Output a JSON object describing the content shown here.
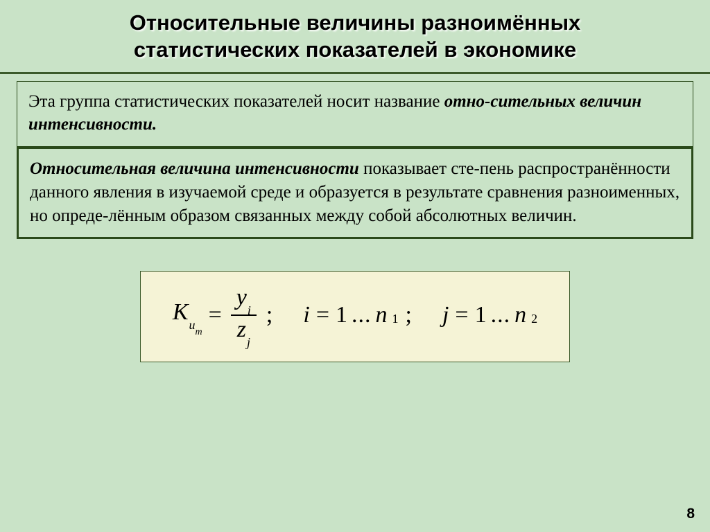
{
  "colors": {
    "slide_bg": "#c9e3c7",
    "formula_bg": "#f5f3d6",
    "border_dark": "#2a4a1a",
    "title_shadow": "#ffffff"
  },
  "title": {
    "line1": "Относительные величины разноимённых",
    "line2": "статистических показателей в экономике",
    "fontsize": 31
  },
  "box1": {
    "text_prefix": "Эта группа статистических показателей  носит название ",
    "emph1": "отно-сительных величин интенсивности.",
    "fontsize": 25
  },
  "box2": {
    "emph": "Относительная величина интенсивности",
    "text": " показывает сте-пень распространённости данного явления в изучаемой среде и образуется в результате сравнения разноименных, но опреде-лённым образом связанных между собой абсолютных величин.",
    "fontsize": 25
  },
  "formula": {
    "K": "К",
    "K_sub": "и",
    "K_subsub": "т",
    "frac_num_var": "y",
    "frac_num_sub": "i",
    "frac_den_var": "z",
    "frac_den_sub": "j",
    "i_var": "i",
    "i_from": "1",
    "i_to_var": "n",
    "i_to_sub": "1",
    "j_var": "j",
    "j_from": "1",
    "j_to_var": "n",
    "j_to_sub": "2",
    "eq": "=",
    "dots": "...",
    "semi": ";",
    "fontsize": 34
  },
  "page_number": "8"
}
